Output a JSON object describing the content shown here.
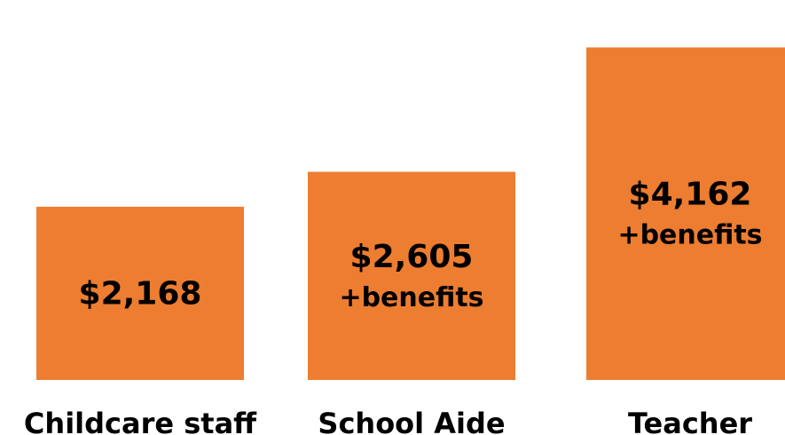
{
  "chart_data": {
    "type": "bar",
    "categories": [
      "Childcare staff",
      "School Aide",
      "Teacher"
    ],
    "values": [
      2168,
      2605,
      4162
    ],
    "value_labels": [
      "$2,168",
      "$2,605",
      "$4,162"
    ],
    "notes": [
      "",
      "+benefits",
      "+benefits"
    ],
    "title": "",
    "xlabel": "",
    "ylabel": "",
    "ylim": [
      0,
      4500
    ],
    "grid": false,
    "legend": "none",
    "bar_color": "#ED7D31",
    "text_color": "#000000"
  }
}
